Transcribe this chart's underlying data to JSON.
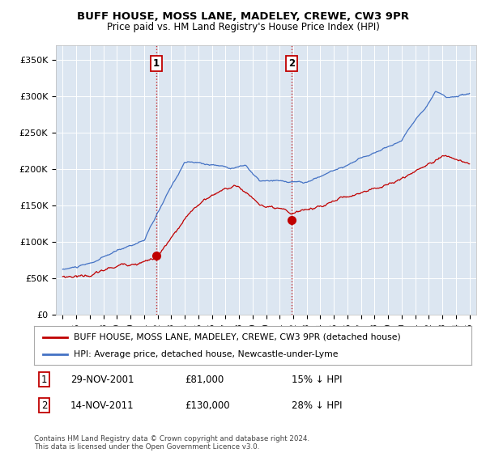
{
  "title": "BUFF HOUSE, MOSS LANE, MADELEY, CREWE, CW3 9PR",
  "subtitle": "Price paid vs. HM Land Registry's House Price Index (HPI)",
  "ylabel_ticks": [
    "£0",
    "£50K",
    "£100K",
    "£150K",
    "£200K",
    "£250K",
    "£300K",
    "£350K"
  ],
  "ytick_values": [
    0,
    50000,
    100000,
    150000,
    200000,
    250000,
    300000,
    350000
  ],
  "ylim": [
    0,
    370000
  ],
  "sale1": {
    "date": "29-NOV-2001",
    "price": 81000,
    "label": "1",
    "hpi_diff": "15% ↓ HPI"
  },
  "sale2": {
    "date": "14-NOV-2011",
    "price": 130000,
    "label": "2",
    "hpi_diff": "28% ↓ HPI"
  },
  "sale1_x": 2001.91,
  "sale2_x": 2011.87,
  "hpi_color": "#4472c4",
  "price_color": "#c00000",
  "bg_color": "#dce6f1",
  "legend_house": "BUFF HOUSE, MOSS LANE, MADELEY, CREWE, CW3 9PR (detached house)",
  "legend_hpi": "HPI: Average price, detached house, Newcastle-under-Lyme",
  "footer": "Contains HM Land Registry data © Crown copyright and database right 2024.\nThis data is licensed under the Open Government Licence v3.0.",
  "xlim_start": 1994.5,
  "xlim_end": 2025.5
}
